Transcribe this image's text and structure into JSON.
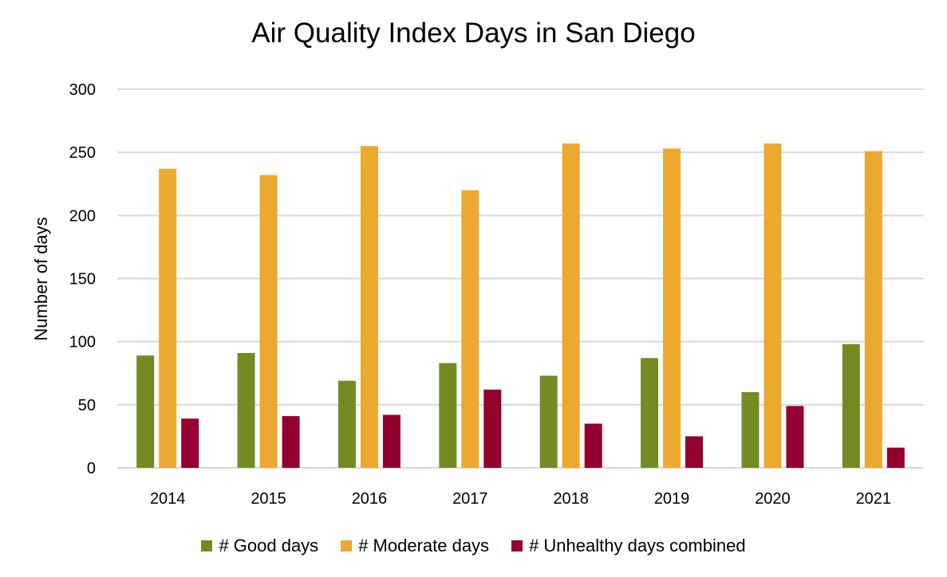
{
  "chart_data": {
    "type": "bar",
    "title": "Air Quality Index Days in San Diego",
    "xlabel": "",
    "ylabel": "Number of days",
    "ylim": [
      0,
      300
    ],
    "yticks": [
      0,
      50,
      100,
      150,
      200,
      250,
      300
    ],
    "grid": true,
    "legend_position": "bottom",
    "categories": [
      "2014",
      "2015",
      "2016",
      "2017",
      "2018",
      "2019",
      "2020",
      "2021"
    ],
    "series": [
      {
        "name": "# Good days",
        "color": "#748B24",
        "values": [
          89,
          91,
          69,
          83,
          73,
          87,
          60,
          98
        ]
      },
      {
        "name": "# Moderate days",
        "color": "#ECA92F",
        "values": [
          237,
          232,
          255,
          220,
          257,
          253,
          257,
          251
        ]
      },
      {
        "name": "# Unhealthy days combined",
        "color": "#93002F",
        "values": [
          39,
          41,
          42,
          62,
          35,
          25,
          49,
          16
        ]
      }
    ]
  }
}
